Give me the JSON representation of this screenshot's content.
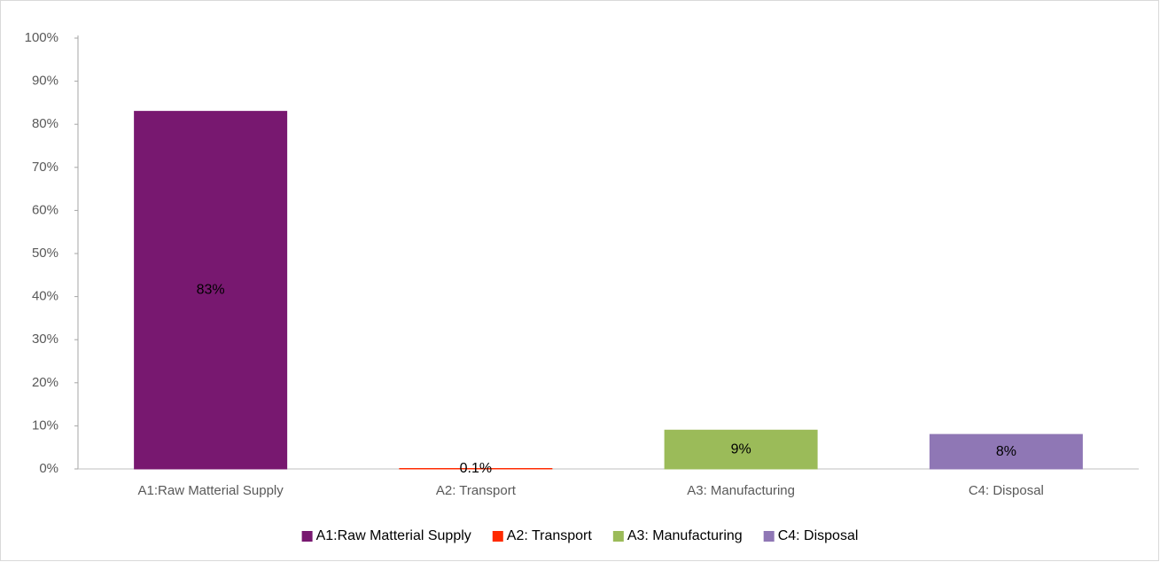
{
  "chart_data": {
    "type": "bar",
    "categories": [
      "A1:Raw Matterial Supply",
      "A2: Transport",
      "A3: Manufacturing",
      "C4: Disposal"
    ],
    "values": [
      83,
      0.1,
      9,
      8
    ],
    "value_labels": [
      "83%",
      "0.1%",
      "9%",
      "8%"
    ],
    "colors": [
      "#781870",
      "#ff2a00",
      "#9bbb59",
      "#8f77b5"
    ],
    "ylim": [
      0,
      100
    ],
    "yticks": [
      {
        "value": 0,
        "label": "0%"
      },
      {
        "value": 10,
        "label": "10%"
      },
      {
        "value": 20,
        "label": "20%"
      },
      {
        "value": 30,
        "label": "30%"
      },
      {
        "value": 40,
        "label": "40%"
      },
      {
        "value": 50,
        "label": "50%"
      },
      {
        "value": 60,
        "label": "60%"
      },
      {
        "value": 70,
        "label": "70%"
      },
      {
        "value": 80,
        "label": "80%"
      },
      {
        "value": 90,
        "label": "90%"
      },
      {
        "value": 100,
        "label": "100%"
      }
    ],
    "grid": false,
    "legend": "bottom"
  }
}
